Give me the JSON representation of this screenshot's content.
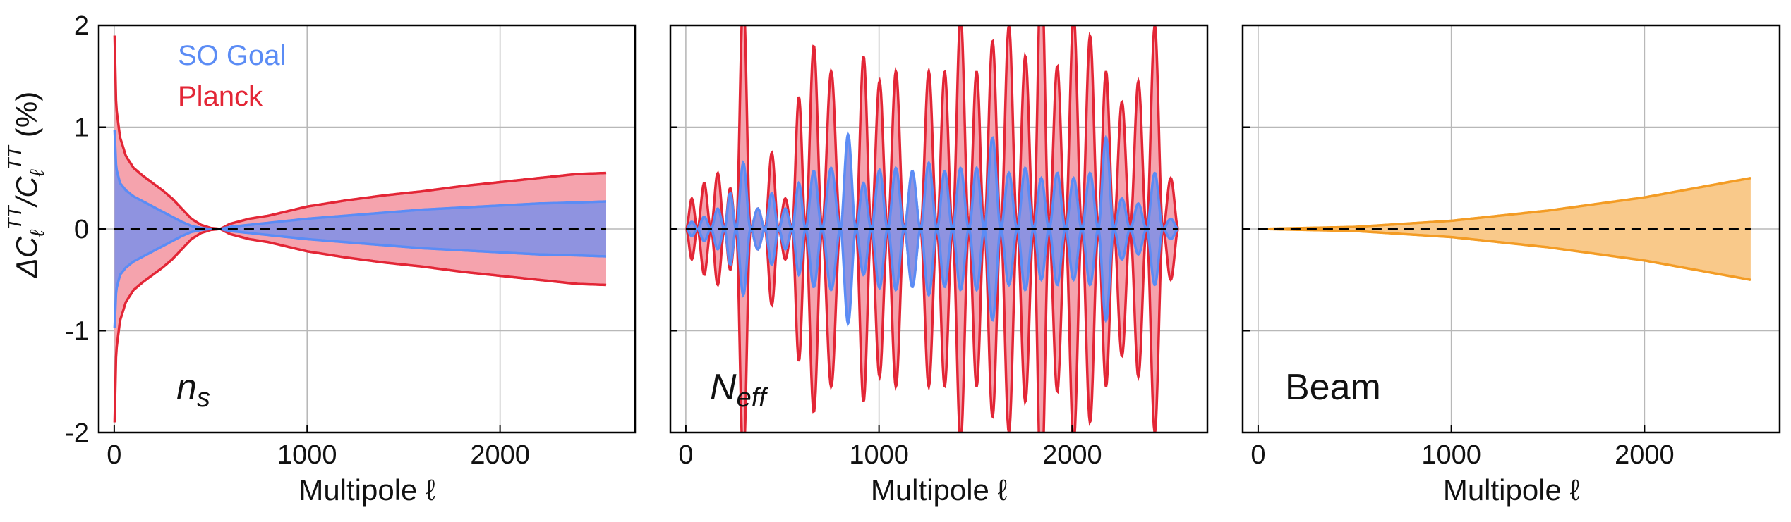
{
  "figure": {
    "ylabel": "ΔC_ℓ^TT / C_ℓ^TT (%)",
    "ylabel_main": "ΔC",
    "ylabel_sub": "ℓ",
    "ylabel_sup": "TT",
    "ylabel_mid": "/C",
    "ylabel_unit": "(%)",
    "legend": {
      "placement": "top-left of first panel",
      "entries": [
        "SO Goal",
        "Planck"
      ]
    }
  },
  "colors": {
    "so": "#5b8cf5",
    "so_fill": "#8f93e0",
    "planck": "#e32636",
    "planck_fill": "#f5a3ad",
    "beam": "#f39c25",
    "beam_fill": "#f9c98a",
    "zero_line": "#000000",
    "grid": "#b8b8b8"
  },
  "chart_data": [
    {
      "type": "area",
      "panel_label": "n",
      "panel_label_sub": "s",
      "xlabel": "Multipole ℓ",
      "xlim": [
        -80,
        2700
      ],
      "ylim": [
        -2,
        2
      ],
      "xticks": [
        0,
        1000,
        2000
      ],
      "yticks": [
        -2,
        -1,
        0,
        1,
        2
      ],
      "grid": true,
      "series": [
        {
          "name": "Planck",
          "kind": "symmetric_envelope",
          "x": [
            2,
            10,
            30,
            60,
            100,
            150,
            200,
            250,
            300,
            350,
            400,
            450,
            500,
            550,
            600,
            700,
            800,
            1000,
            1200,
            1400,
            1600,
            1800,
            2000,
            2200,
            2400,
            2550
          ],
          "y": [
            1.9,
            1.2,
            0.9,
            0.72,
            0.6,
            0.52,
            0.45,
            0.38,
            0.3,
            0.2,
            0.1,
            0.04,
            0.01,
            0.0,
            0.05,
            0.1,
            0.13,
            0.22,
            0.28,
            0.33,
            0.37,
            0.42,
            0.46,
            0.5,
            0.54,
            0.55
          ]
        },
        {
          "name": "SO Goal",
          "kind": "symmetric_envelope",
          "x": [
            2,
            10,
            30,
            60,
            100,
            150,
            200,
            250,
            300,
            350,
            400,
            450,
            500,
            550,
            600,
            700,
            800,
            1000,
            1200,
            1400,
            1600,
            1800,
            2000,
            2200,
            2400,
            2550
          ],
          "y": [
            0.97,
            0.6,
            0.45,
            0.38,
            0.32,
            0.27,
            0.22,
            0.17,
            0.12,
            0.07,
            0.03,
            0.01,
            0.0,
            0.0,
            0.02,
            0.04,
            0.06,
            0.1,
            0.13,
            0.16,
            0.19,
            0.21,
            0.23,
            0.25,
            0.26,
            0.27
          ]
        }
      ]
    },
    {
      "type": "area",
      "panel_label": "N",
      "panel_label_sub": "eff",
      "xlabel": "Multipole ℓ",
      "xlim": [
        -80,
        2700
      ],
      "ylim": [
        -2,
        2
      ],
      "xticks": [
        0,
        1000,
        2000
      ],
      "yticks": [
        -2,
        -1,
        0,
        1,
        2
      ],
      "grid": true,
      "series": [
        {
          "name": "Planck",
          "kind": "oscillating_envelope",
          "nodes": [
            2,
            60,
            130,
            200,
            260,
            335,
            410,
            480,
            550,
            620,
            705,
            800,
            880,
            960,
            1045,
            1130,
            1215,
            1300,
            1380,
            1465,
            1545,
            1630,
            1715,
            1800,
            1880,
            1965,
            2050,
            2135,
            2215,
            2300,
            2385,
            2470,
            2550
          ],
          "peaks": [
            0.3,
            0.45,
            0.55,
            0.4,
            2.3,
            0.2,
            0.75,
            0.3,
            1.3,
            1.8,
            1.55,
            0.4,
            1.7,
            1.45,
            1.55,
            0.55,
            1.55,
            1.55,
            2.1,
            1.55,
            1.85,
            2.0,
            1.7,
            2.6,
            1.6,
            2.1,
            1.9,
            1.55,
            1.25,
            1.45,
            2.0,
            0.5
          ]
        },
        {
          "name": "SO Goal",
          "kind": "oscillating_envelope",
          "nodes": [
            2,
            60,
            130,
            200,
            260,
            335,
            410,
            480,
            550,
            620,
            705,
            800,
            880,
            960,
            1045,
            1130,
            1215,
            1300,
            1380,
            1465,
            1545,
            1630,
            1715,
            1800,
            1880,
            1965,
            2050,
            2135,
            2215,
            2300,
            2385,
            2470,
            2550
          ],
          "peaks": [
            0.07,
            0.12,
            0.2,
            0.35,
            0.65,
            0.2,
            0.35,
            0.2,
            0.45,
            0.57,
            0.6,
            0.93,
            0.45,
            0.58,
            0.6,
            0.57,
            0.65,
            0.57,
            0.6,
            0.6,
            0.9,
            0.55,
            0.6,
            0.5,
            0.55,
            0.5,
            0.55,
            0.9,
            0.3,
            0.25,
            0.55,
            0.1
          ]
        }
      ]
    },
    {
      "type": "area",
      "panel_label": "Beam",
      "xlabel": "Multipole ℓ",
      "xlim": [
        -80,
        2700
      ],
      "ylim": [
        -2,
        2
      ],
      "xticks": [
        0,
        1000,
        2000
      ],
      "yticks": [
        -2,
        -1,
        0,
        1,
        2
      ],
      "grid": true,
      "series": [
        {
          "name": "Beam",
          "kind": "symmetric_envelope",
          "x": [
            0,
            500,
            1000,
            1500,
            2000,
            2550
          ],
          "y": [
            0.0,
            0.02,
            0.08,
            0.18,
            0.31,
            0.5
          ]
        }
      ]
    }
  ]
}
